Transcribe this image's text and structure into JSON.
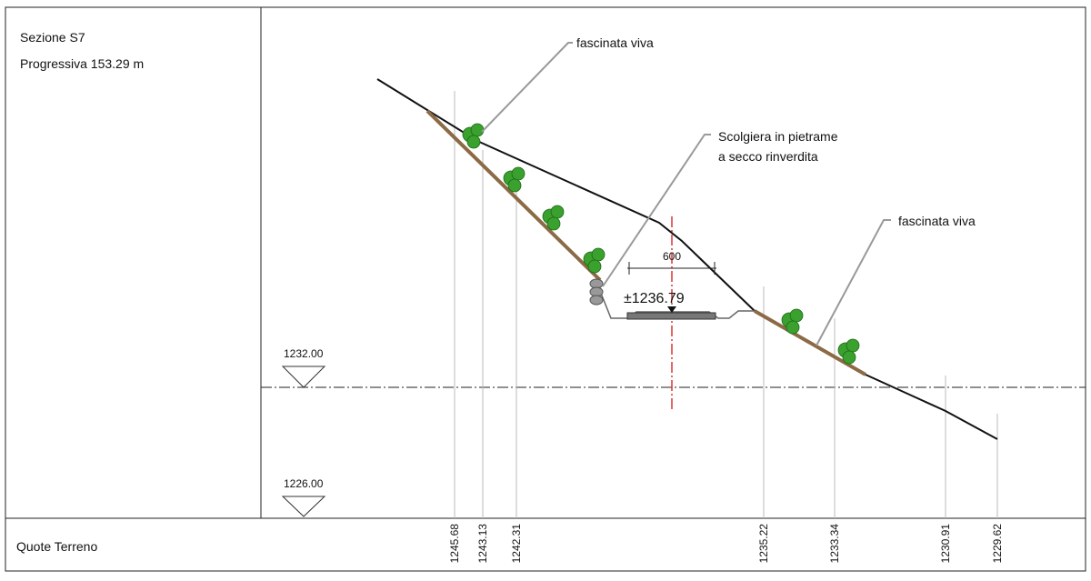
{
  "header": {
    "section": "Sezione S7",
    "progressive": "Progressiva 153.29 m"
  },
  "annotations": {
    "fascinata_left": "fascinata viva",
    "scogliera_line1": "Scolgiera in pietrame",
    "scogliera_line2": "a secco rinverdita",
    "fascinata_right": "fascinata viva",
    "width": "600",
    "elevation_channel": "±1236.79"
  },
  "reference_levels": [
    "1232.00",
    "1226.00"
  ],
  "footer": {
    "label": "Quote Terreno",
    "elevations": [
      "1245.68",
      "1243.13",
      "1242.31",
      "1235.22",
      "1233.34",
      "1230.91",
      "1229.62"
    ]
  }
}
